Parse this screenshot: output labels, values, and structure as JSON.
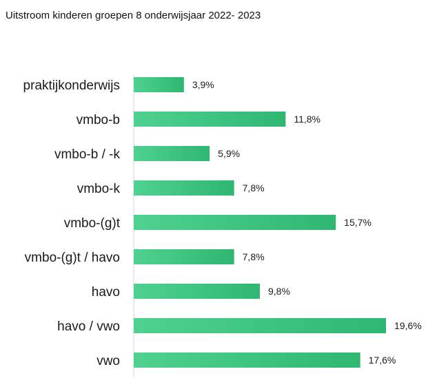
{
  "chart_data": {
    "type": "bar",
    "orientation": "horizontal",
    "title": "Uitstroom kinderen groepen 8 onderwijsjaar 2022- 2023",
    "categories": [
      "praktijkonderwijs",
      "vmbo-b",
      "vmbo-b / -k",
      "vmbo-k",
      "vmbo-(g)t",
      "vmbo-(g)t / havo",
      "havo",
      "havo / vwo",
      "vwo"
    ],
    "values": [
      3.9,
      11.8,
      5.9,
      7.8,
      15.7,
      7.8,
      9.8,
      19.6,
      17.6
    ],
    "value_labels": [
      "3,9%",
      "11,8%",
      "5,9%",
      "7,8%",
      "15,7%",
      "7,8%",
      "9,8%",
      "19,6%",
      "17,6%"
    ],
    "unit": "%",
    "xlim": [
      0,
      19.6
    ],
    "grid": false,
    "legend": "none",
    "colors": {
      "bar_start": "#4fd18f",
      "bar_end": "#2fb772",
      "axis": "#d9d9d9",
      "text": "#1a1a1a"
    }
  }
}
